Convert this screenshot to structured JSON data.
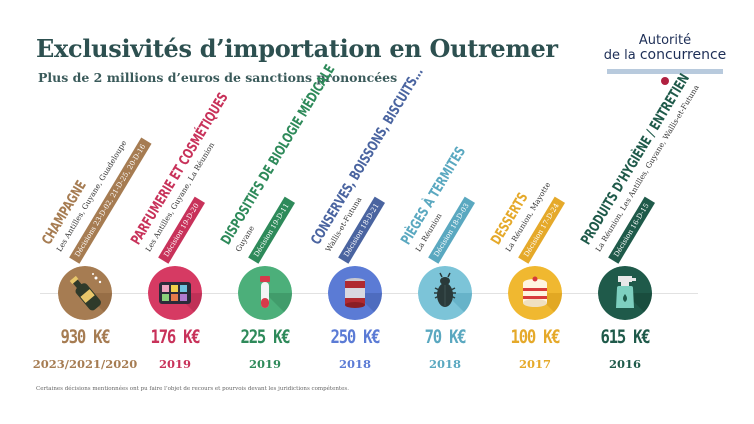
{
  "header": {
    "title": "Exclusivités d’importation en Outremer",
    "subtitle": "Plus de 2 millions d’euros de sanctions prononcées"
  },
  "logo": {
    "line1": "Autorité",
    "line2_prefix": "de la ",
    "line2_main": "concurrence",
    "bar_color": "#b8cadd",
    "dot_color": "#b02040"
  },
  "items": [
    {
      "category": "CHAMPAGNE",
      "territories": "Les Antilles, Guyane, Guadeloupe",
      "decision": "Décisions 23-D-02, 21-D-25, 20-D-16",
      "amount": "930 K€",
      "year": "2023/2021/2020",
      "icon": "champagne-bottle-icon",
      "color": "#a67c52",
      "circle_color": "#a67c52"
    },
    {
      "category": "PARFUMERIE ET COSMÉTIQUES",
      "territories": "Les Antilles, Guyane, La Réunion",
      "decision": "Décision 19-D-20",
      "amount": "176 K€",
      "year": "2019",
      "icon": "makeup-palette-icon",
      "color": "#c8325a",
      "circle_color": "#d63a63"
    },
    {
      "category": "DISPOSITIFS DE BIOLOGIE MÉDICALE",
      "territories": "Guyane",
      "decision": "Décision 19-D-11",
      "amount": "225 K€",
      "year": "2019",
      "icon": "test-tube-icon",
      "color": "#2e8a5a",
      "circle_color": "#4caf7a"
    },
    {
      "category": "CONSERVES, BOISSONS, BISCUITS...",
      "territories": "Wallis-et-Futuna",
      "decision": "Décision 18-D-21",
      "amount": "250 K€",
      "year": "2018",
      "icon": "canned-food-icon",
      "color": "#4a64a0",
      "circle_color": "#5b7bd5"
    },
    {
      "category": "PIÈGES À TERMITES",
      "territories": "La Réunion",
      "decision": "Décision 18-D-03",
      "amount": "70 K€",
      "year": "2018",
      "icon": "termite-icon",
      "color": "#5aa8c0",
      "circle_color": "#7cc4d8"
    },
    {
      "category": "DESSERTS",
      "territories": "La Réunion, Mayotte",
      "decision": "Décision 17-D-24",
      "amount": "100 K€",
      "year": "2017",
      "icon": "dessert-cake-icon",
      "color": "#e5a92a",
      "circle_color": "#f0b830"
    },
    {
      "category": "PRODUITS D’HYGIÈNE / ENTRETIEN",
      "territories": "La Réunion, Les Antilles, Guyane, Wallis-et-Futuna",
      "decision": "Décision 16-D-15",
      "amount": "615 K€",
      "year": "2016",
      "icon": "spray-bottle-icon",
      "color": "#1f5a4a",
      "circle_color": "#1f5a4a"
    }
  ],
  "footnote": "Certaines décisions mentionnées ont pu faire l’objet de recours et pourvois devant les juridictions compétentes."
}
